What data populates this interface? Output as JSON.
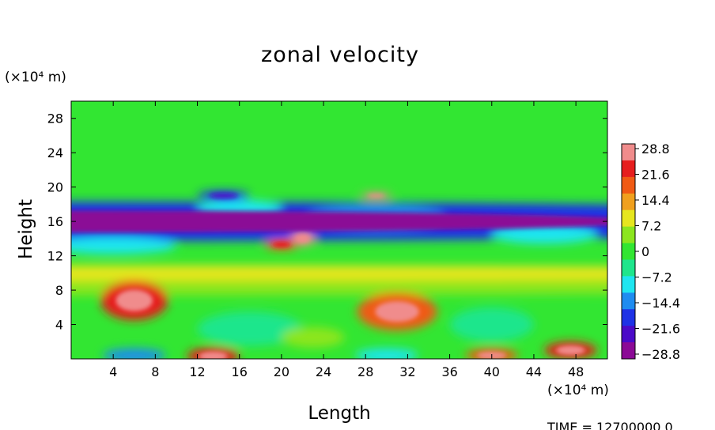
{
  "chart_data": {
    "type": "heatmap",
    "title": "zonal velocity",
    "xlabel": "Length",
    "ylabel": "Height",
    "x_unit": "(×10⁴ m)",
    "y_unit": "(×10⁴ m)",
    "x_ticks": [
      4,
      8,
      12,
      16,
      20,
      24,
      28,
      32,
      36,
      40,
      44,
      48
    ],
    "y_ticks": [
      4,
      8,
      12,
      16,
      20,
      24,
      28
    ],
    "xlim": [
      0,
      51
    ],
    "ylim": [
      0,
      30
    ],
    "colorbar_labels": [
      "28.8",
      "21.6",
      "14.4",
      "7.2",
      "0",
      "−7.2",
      "−14.4",
      "−21.6",
      "−28.8"
    ],
    "value_range": [
      -28.8,
      28.8
    ],
    "colormap": [
      "#8b0a96",
      "#4b0ac8",
      "#1e32e6",
      "#1e8cf0",
      "#1ee6f0",
      "#1ee68c",
      "#32e632",
      "#8ce61e",
      "#e6e61e",
      "#f0a01e",
      "#f05a14",
      "#e61e1e",
      "#f08c8c"
    ],
    "footer_text": "TIME = 12700000.0",
    "structures": [
      {
        "xc": 0,
        "yc": 8.5,
        "rx": 100,
        "ry": 1.1,
        "value": 4
      },
      {
        "xc": 0,
        "yc": 10,
        "rx": 100,
        "ry": 0.9,
        "value": 9
      },
      {
        "xc": 0,
        "yc": 16,
        "rx": 100,
        "ry": 2.3,
        "value": -20
      },
      {
        "xc": 4,
        "yc": 13.2,
        "rx": 6,
        "ry": 1.0,
        "value": -10
      },
      {
        "xc": 16,
        "yc": 17.5,
        "rx": 4,
        "ry": 1.0,
        "value": -12
      },
      {
        "xc": 14.5,
        "yc": 19,
        "rx": 2.5,
        "ry": 0.6,
        "value": -18
      },
      {
        "xc": 29,
        "yc": 16.5,
        "rx": 6.5,
        "ry": 1.4,
        "value": -16
      },
      {
        "xc": 45,
        "yc": 14.5,
        "rx": 5,
        "ry": 1.1,
        "value": -12
      },
      {
        "xc": 22,
        "yc": 14,
        "rx": 1.2,
        "ry": 0.8,
        "value": 30
      },
      {
        "xc": 20,
        "yc": 13.3,
        "rx": 1.6,
        "ry": 0.6,
        "value": 18
      },
      {
        "xc": 29,
        "yc": 19,
        "rx": 1.5,
        "ry": 0.35,
        "value": 30
      },
      {
        "xc": 6,
        "yc": 6.8,
        "rx": 3.2,
        "ry": 2.3,
        "value": 22
      },
      {
        "xc": 31,
        "yc": 5.5,
        "rx": 3.8,
        "ry": 2.2,
        "value": 20
      },
      {
        "xc": 13.5,
        "yc": 0.3,
        "rx": 2.5,
        "ry": 1.0,
        "value": 24
      },
      {
        "xc": 47.5,
        "yc": 1,
        "rx": 2.5,
        "ry": 1.0,
        "value": 26
      },
      {
        "xc": 40,
        "yc": 0.4,
        "rx": 2.5,
        "ry": 0.8,
        "value": 20
      },
      {
        "xc": 17,
        "yc": 3.5,
        "rx": 5,
        "ry": 2.0,
        "value": -4
      },
      {
        "xc": 40,
        "yc": 4,
        "rx": 4,
        "ry": 2.0,
        "value": -5
      },
      {
        "xc": 6,
        "yc": 0.4,
        "rx": 3,
        "ry": 0.8,
        "value": -14
      },
      {
        "xc": 30,
        "yc": 0.4,
        "rx": 3,
        "ry": 0.8,
        "value": -10
      },
      {
        "xc": 23,
        "yc": 2.5,
        "rx": 3,
        "ry": 1.2,
        "value": 6
      }
    ]
  }
}
